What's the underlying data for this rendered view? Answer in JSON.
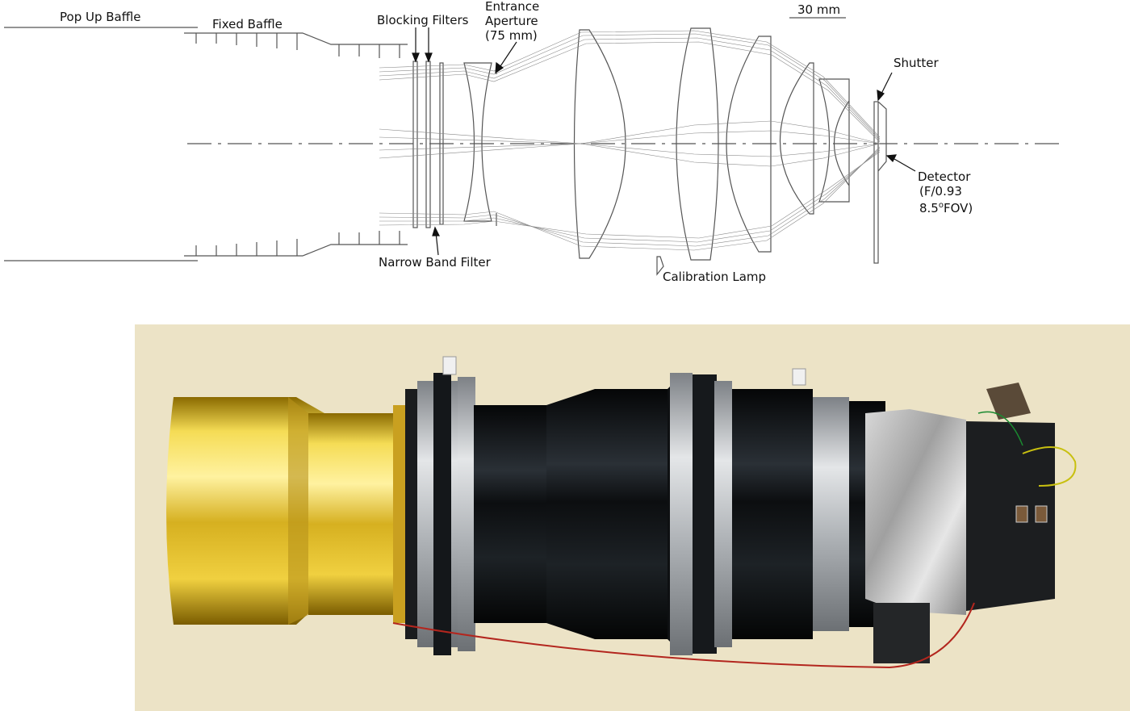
{
  "labels": {
    "pop_up_baffle": "Pop Up Baffle",
    "fixed_baffle": "Fixed Baffle",
    "blocking_filters": "Blocking Filters",
    "entrance_aperture_line1": "Entrance",
    "entrance_aperture_line2": "Aperture",
    "entrance_aperture_line3": "(75 mm)",
    "scale_bar": "30 mm",
    "shutter": "Shutter",
    "detector_line1": "Detector",
    "detector_line2": "(F/0.93",
    "detector_line3_value": "8.5",
    "detector_line3_degree": "o",
    "detector_line3_suffix": "FOV)",
    "narrow_band_filter": "Narrow Band Filter",
    "calibration_lamp": "Calibration Lamp"
  },
  "colors": {
    "line": "#555555",
    "ray": "#888888",
    "text": "#111111",
    "photo_background": "#ece3c6",
    "gold": "#d9b51f",
    "barrel": "#16191c",
    "ring": "#c9ccd0"
  }
}
